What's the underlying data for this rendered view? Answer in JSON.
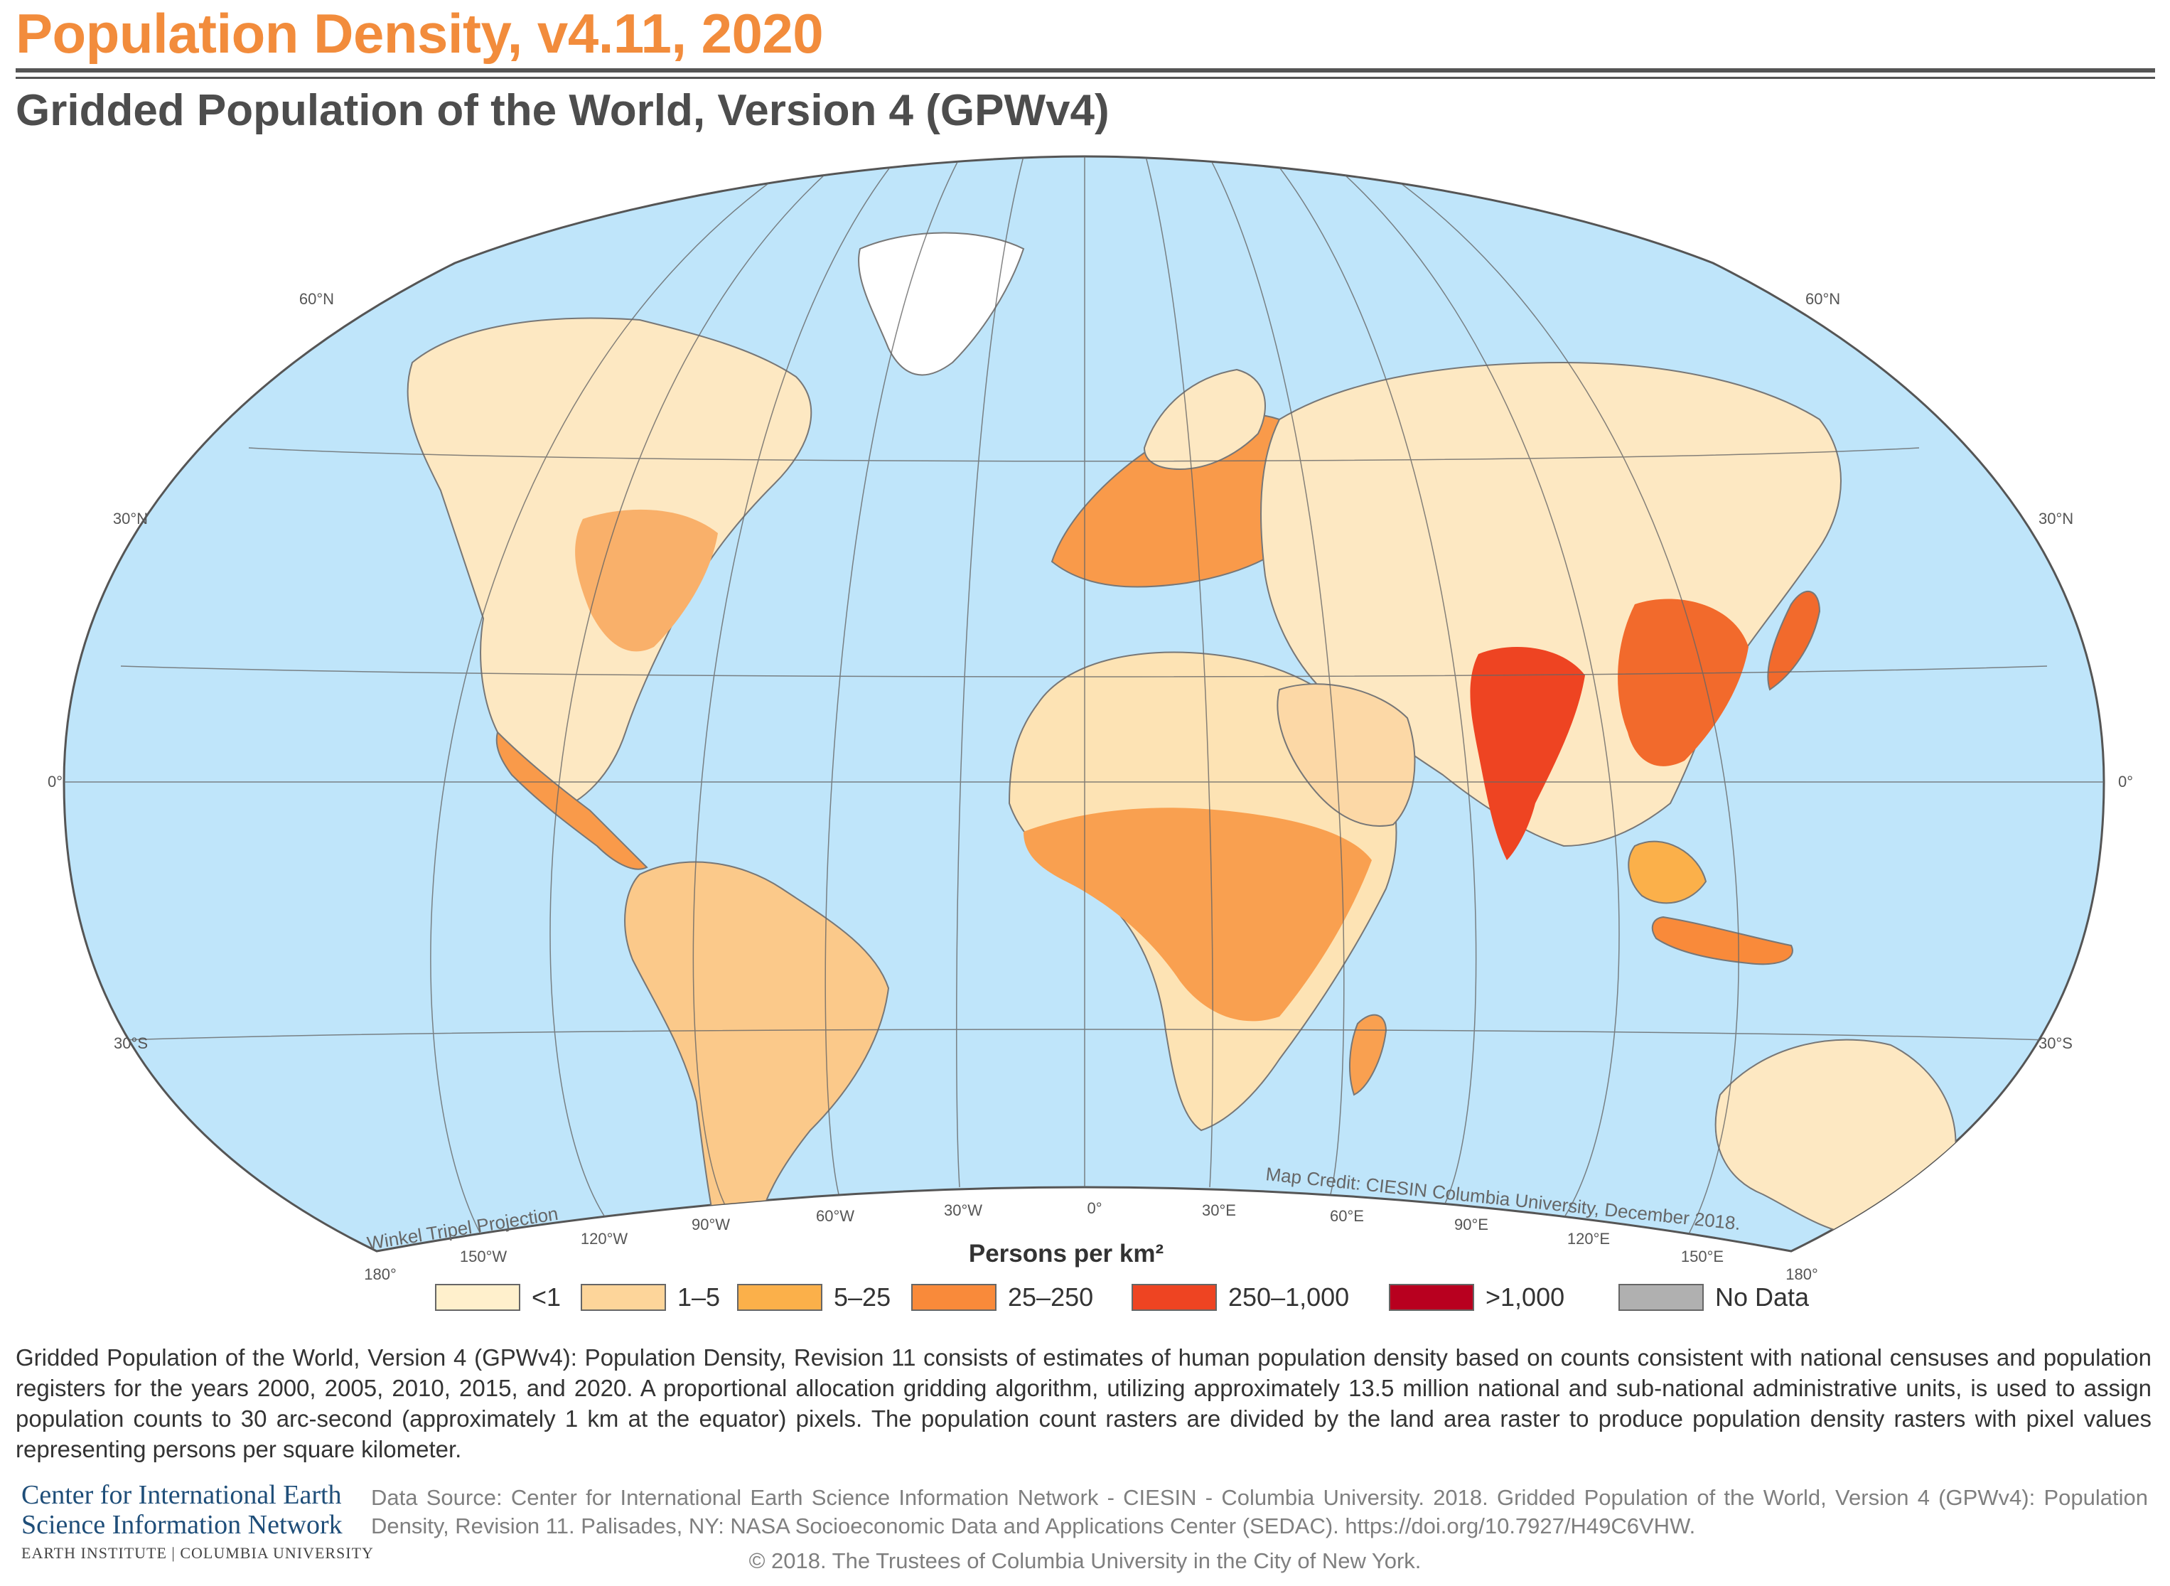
{
  "header": {
    "title": "Population Density, v4.11, 2020",
    "subtitle": "Gridded Population of the World, Version 4 (GPWv4)"
  },
  "map": {
    "projection_label": "Winkel Tripel Projection",
    "credit": "Map Credit: CIESIN Columbia University, December 2018.",
    "ocean_color": "#bfe5fa",
    "latitude_labels": {
      "n60": "60°N",
      "n30": "30°N",
      "eq": "0°",
      "s30": "30°S"
    },
    "longitude_labels": [
      "180°",
      "150°W",
      "120°W",
      "90°W",
      "60°W",
      "30°W",
      "0°",
      "30°E",
      "60°E",
      "90°E",
      "120°E",
      "150°E",
      "180°"
    ]
  },
  "legend": {
    "title": "Persons per km²",
    "items": [
      {
        "label": "<1",
        "color": "#fff0cc"
      },
      {
        "label": "1–5",
        "color": "#fdd59a"
      },
      {
        "label": "5–25",
        "color": "#fbb04a"
      },
      {
        "label": "25–250",
        "color": "#f98a3a"
      },
      {
        "label": "250–1,000",
        "color": "#ee4422"
      },
      {
        "label": ">1,000",
        "color": "#b8001f"
      },
      {
        "label": "No Data",
        "color": "#b0b0b0"
      }
    ]
  },
  "description": "Gridded Population of the World, Version 4 (GPWv4): Population Density, Revision 11 consists of estimates of human population density based on counts consistent with national censuses and population registers for the years 2000, 2005, 2010, 2015, and 2020. A proportional allocation gridding algorithm, utilizing approximately 13.5 million national and sub-national administrative units, is used to assign population counts to 30 arc-second (approximately 1 km at the equator) pixels. The population count rasters are divided by the land area raster to produce population density rasters with pixel values representing persons per square kilometer.",
  "footer": {
    "logo_line1": "Center for International Earth",
    "logo_line2": "Science Information Network",
    "logo_line3": "EARTH INSTITUTE | COLUMBIA UNIVERSITY",
    "source": "Data Source: Center for International Earth Science Information Network - CIESIN - Columbia University. 2018. Gridded Population of the World, Version 4 (GPWv4): Population Density, Revision 11. Palisades, NY: NASA Socioeconomic Data and Applications Center (SEDAC). https://doi.org/10.7927/H49C6VHW.",
    "copyright": "© 2018. The Trustees of Columbia University in the City of New York."
  }
}
